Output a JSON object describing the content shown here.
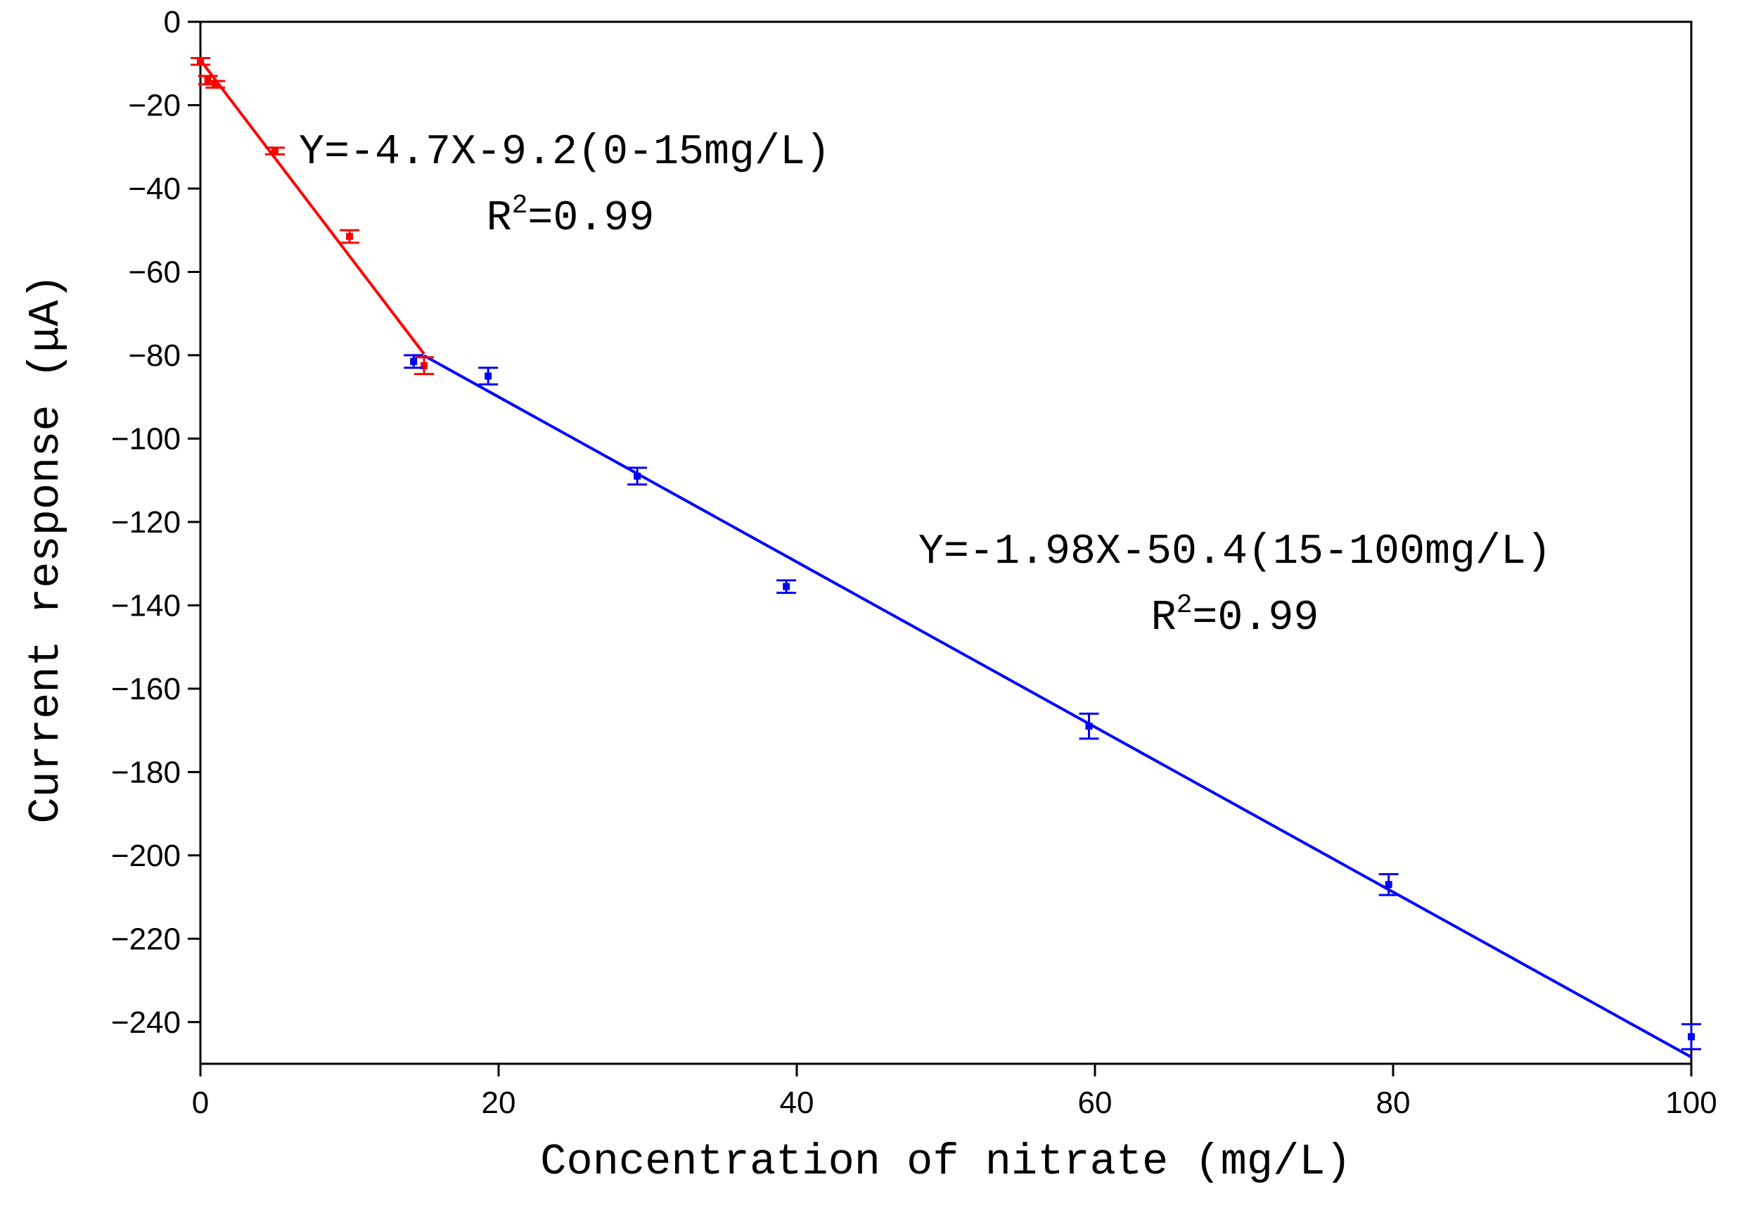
{
  "chart_data": {
    "type": "scatter",
    "x_label": "Concentration of nitrate (mg/L)",
    "y_label": "Current response (μA)",
    "xlim": [
      0,
      100
    ],
    "xticks": [
      0,
      20,
      40,
      60,
      80,
      100
    ],
    "ylim": [
      -250,
      0
    ],
    "yticks": [
      0,
      {
        "value": -20,
        "label": "−20"
      },
      {
        "value": -40,
        "label": "−40"
      },
      {
        "value": -60,
        "label": "−60"
      },
      {
        "value": -80,
        "label": "−80"
      },
      {
        "value": -100,
        "label": "−100"
      },
      {
        "value": -120,
        "label": "−120"
      },
      {
        "value": -140,
        "label": "−140"
      },
      {
        "value": -160,
        "label": "−160"
      },
      {
        "value": -180,
        "label": "−180"
      },
      {
        "value": -200,
        "label": "−200"
      },
      {
        "value": -220,
        "label": "−220"
      },
      {
        "value": -240,
        "label": "−240"
      }
    ],
    "series": [
      {
        "color": "#ff0000",
        "x": [
          0,
          0.5,
          1,
          5,
          10,
          15
        ],
        "values": [
          -9.5,
          -14,
          -15,
          -31,
          -51.5,
          -82.5
        ],
        "errors": [
          0.8,
          1,
          0.8,
          0.8,
          1.5,
          2
        ]
      },
      {
        "color": "#0000ff",
        "x": [
          14.3,
          19.3,
          29.3,
          39.3,
          59.6,
          79.7,
          100
        ],
        "values": [
          -81.5,
          -85,
          -109,
          -135.5,
          -169,
          -207,
          -243.5
        ],
        "errors": [
          1.5,
          2,
          2,
          1.5,
          3,
          2.5,
          3
        ]
      }
    ],
    "fits": [
      {
        "color": "#ff0000",
        "x": [
          0,
          15
        ],
        "values": [
          -9.2,
          -79.7
        ]
      },
      {
        "color": "#0000ff",
        "x": [
          15,
          100
        ],
        "values": [
          -80.1,
          -248.4
        ]
      }
    ],
    "annotations": [
      {
        "equation": "Y=-4.7X-9.2(0-15mg/L)",
        "r2": [
          "R",
          "2",
          "=0.99"
        ]
      },
      {
        "equation": "Y=-1.98X-50.4(15-100mg/L)",
        "r2": [
          "R",
          "2",
          "=0.99"
        ]
      }
    ]
  }
}
